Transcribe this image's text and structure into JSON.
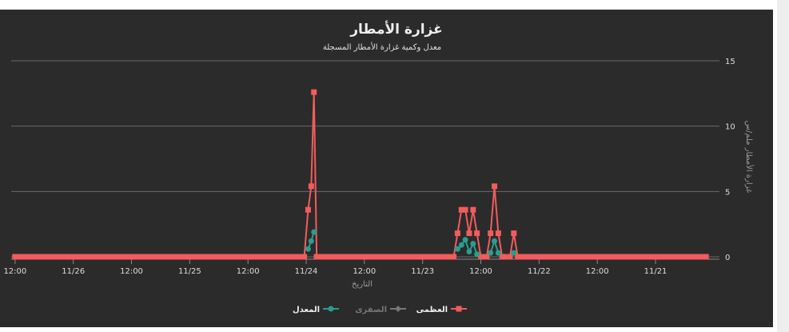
{
  "chart_data": {
    "type": "line",
    "title": "غزارة الأمطار",
    "subtitle": "معدل وكمية غزارة الأمطار المسجلة",
    "xlabel": "التاريخ",
    "ylabel": "غزارة الأمطار ملم/س",
    "ylim": [
      0,
      15
    ],
    "y_ticks": [
      "0",
      "5",
      "10",
      "15"
    ],
    "x_ticks": [
      "12:00",
      "11/26",
      "12:00",
      "11/25",
      "12:00",
      "11/24",
      "12:00",
      "11/23",
      "12:00",
      "11/22",
      "12:00",
      "11/21"
    ],
    "x_axis_reversed": true,
    "y_axis_position": "right",
    "grid": true,
    "legend_position": "bottom",
    "series": [
      {
        "name": "العظمى",
        "color": "#f25c5c",
        "marker": "square",
        "segments": [
          [
            [
              1,
              0
            ],
            [
              40,
              0
            ]
          ],
          [
            [
              40.4,
              0
            ],
            [
              75.5,
              0
            ],
            [
              76.5,
              3.6
            ],
            [
              77.3,
              5.4
            ],
            [
              78,
              12.6
            ],
            [
              78.7,
              0
            ]
          ],
          [
            [
              78.7,
              0
            ],
            [
              114,
              0
            ],
            [
              115,
              1.8
            ],
            [
              116,
              3.6
            ],
            [
              117,
              3.6
            ],
            [
              118,
              1.8
            ],
            [
              119,
              3.6
            ],
            [
              120,
              1.8
            ],
            [
              121,
              0
            ]
          ],
          [
            [
              121.5,
              0
            ],
            [
              122.5,
              0
            ],
            [
              123.5,
              1.8
            ],
            [
              124.5,
              5.4
            ],
            [
              125.5,
              1.8
            ],
            [
              126.5,
              0
            ]
          ],
          [
            [
              127,
              0
            ],
            [
              128.5,
              0
            ],
            [
              129.5,
              1.8
            ],
            [
              130.5,
              0
            ],
            [
              179,
              0
            ]
          ]
        ]
      },
      {
        "name": "الصفرى",
        "color": "#8a8a8a",
        "marker": "diamond",
        "visible": false,
        "segments": []
      },
      {
        "name": "المعدل",
        "color": "#2a9d8f",
        "marker": "circle",
        "segments": [
          [
            [
              76.5,
              0.6
            ],
            [
              77.3,
              1.2
            ],
            [
              78,
              1.9
            ]
          ],
          [
            [
              115,
              0.6
            ],
            [
              116,
              0.9
            ],
            [
              117,
              1.3
            ],
            [
              118,
              0.4
            ],
            [
              119,
              1.0
            ],
            [
              120,
              0.2
            ]
          ],
          [
            [
              123.5,
              0.3
            ],
            [
              124.5,
              1.2
            ],
            [
              125.5,
              0.3
            ]
          ],
          [
            [
              129.5,
              0.3
            ]
          ]
        ]
      }
    ]
  }
}
